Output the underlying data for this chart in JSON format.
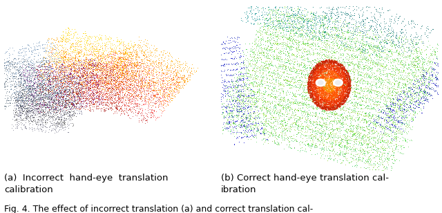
{
  "figure_width": 6.4,
  "figure_height": 3.08,
  "dpi": 100,
  "background_color": "#ffffff",
  "caption_a": "(a)  Incorrect  hand-eye  translation\ncalibration",
  "caption_b": "(b) Correct hand-eye translation cal-\nibration",
  "footer": "Fig. 4. The effect of incorrect translation (a) and correct translation cal-",
  "caption_fontsize": 9.5,
  "footer_fontsize": 9.0
}
